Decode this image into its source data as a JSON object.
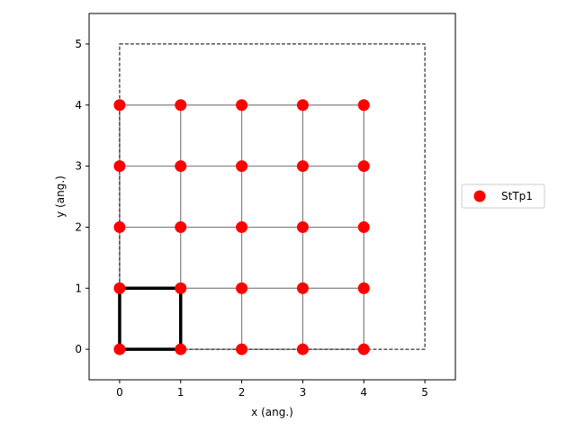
{
  "chart_data": {
    "type": "scatter",
    "title": "",
    "xlabel": "x (ang.)",
    "ylabel": "y (ang.)",
    "xlim": [
      -0.5,
      5.5
    ],
    "ylim": [
      -0.5,
      5.5
    ],
    "xticks": [
      0,
      1,
      2,
      3,
      4,
      5
    ],
    "yticks": [
      0,
      1,
      2,
      3,
      4,
      5
    ],
    "grid": false,
    "legend_placement": "outside right",
    "bonds": {
      "description": "nearest-neighbour grid connections",
      "color": "#808080",
      "x_lines": [
        0,
        1,
        2,
        3,
        4
      ],
      "y_lines": [
        0,
        1,
        2,
        3,
        4
      ],
      "range": [
        0,
        4
      ]
    },
    "supercell": {
      "style": "dashed",
      "color": "#000000",
      "x": [
        0,
        5
      ],
      "y": [
        0,
        5
      ]
    },
    "unit_cell": {
      "style": "solid bold",
      "color": "#000000",
      "x": [
        0,
        1
      ],
      "y": [
        0,
        1
      ]
    },
    "series": [
      {
        "name": "StTp1",
        "color": "#ff0000",
        "points": [
          [
            0,
            0
          ],
          [
            1,
            0
          ],
          [
            2,
            0
          ],
          [
            3,
            0
          ],
          [
            4,
            0
          ],
          [
            0,
            1
          ],
          [
            1,
            1
          ],
          [
            2,
            1
          ],
          [
            3,
            1
          ],
          [
            4,
            1
          ],
          [
            0,
            2
          ],
          [
            1,
            2
          ],
          [
            2,
            2
          ],
          [
            3,
            2
          ],
          [
            4,
            2
          ],
          [
            0,
            3
          ],
          [
            1,
            3
          ],
          [
            2,
            3
          ],
          [
            3,
            3
          ],
          [
            4,
            3
          ],
          [
            0,
            4
          ],
          [
            1,
            4
          ],
          [
            2,
            4
          ],
          [
            3,
            4
          ],
          [
            4,
            4
          ]
        ]
      }
    ]
  }
}
